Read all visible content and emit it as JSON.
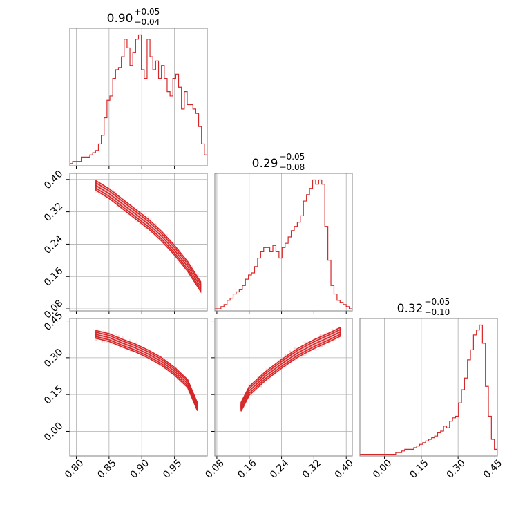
{
  "chart_data": {
    "type": "corner",
    "color": "#d62728",
    "titles": [
      {
        "main": "0.90",
        "plus": "+0.05",
        "minus": "−0.04"
      },
      {
        "main": "0.29",
        "plus": "+0.05",
        "minus": "−0.08"
      },
      {
        "main": "0.32",
        "plus": "+0.05",
        "minus": "−0.10"
      }
    ],
    "ranges": [
      [
        0.79,
        1.0
      ],
      [
        0.075,
        0.415
      ],
      [
        -0.1,
        0.46
      ]
    ],
    "ticks": [
      {
        "values": [
          0.8,
          0.85,
          0.9,
          0.95
        ],
        "labels": [
          "0.80",
          "0.85",
          "0.90",
          "0.95"
        ]
      },
      {
        "values": [
          0.08,
          0.16,
          0.24,
          0.32,
          0.4
        ],
        "labels": [
          "0.08",
          "0.16",
          "0.24",
          "0.32",
          "0.40"
        ]
      },
      {
        "values": [
          0.0,
          0.15,
          0.3,
          0.45
        ],
        "labels": [
          "0.00",
          "0.15",
          "0.30",
          "0.45"
        ]
      }
    ],
    "histograms": [
      {
        "param": 0,
        "edges_range": [
          0.79,
          1.0
        ],
        "counts": [
          1,
          2,
          2,
          2,
          4,
          4,
          4,
          5,
          6,
          7,
          10,
          14,
          22,
          30,
          32,
          40,
          44,
          45,
          50,
          58,
          54,
          46,
          52,
          58,
          60,
          44,
          40,
          58,
          50,
          44,
          48,
          40,
          46,
          40,
          34,
          32,
          40,
          42,
          36,
          26,
          34,
          28,
          28,
          26,
          24,
          18,
          10,
          5
        ]
      },
      {
        "param": 1,
        "edges_range": [
          0.075,
          0.415
        ],
        "counts": [
          1,
          1,
          2,
          3,
          5,
          6,
          8,
          9,
          10,
          12,
          15,
          17,
          18,
          21,
          25,
          28,
          30,
          30,
          28,
          31,
          28,
          25,
          30,
          32,
          35,
          38,
          40,
          42,
          45,
          52,
          55,
          58,
          62,
          60,
          62,
          60,
          40,
          24,
          12,
          8,
          5,
          4,
          3,
          2,
          1
        ]
      },
      {
        "param": 2,
        "edges_range": [
          -0.1,
          0.46
        ],
        "counts": [
          1,
          1,
          1,
          1,
          1,
          1,
          1,
          1,
          1,
          1,
          1,
          1,
          2,
          2,
          3,
          4,
          4,
          4,
          5,
          6,
          7,
          8,
          9,
          10,
          11,
          12,
          14,
          15,
          18,
          17,
          21,
          23,
          24,
          32,
          40,
          47,
          58,
          64,
          73,
          76,
          79,
          68,
          42,
          24,
          10,
          4
        ]
      }
    ],
    "pairs": [
      {
        "x_param": 0,
        "y_param": 1,
        "ridge": [
          [
            0.83,
            0.385
          ],
          [
            0.85,
            0.365
          ],
          [
            0.87,
            0.34
          ],
          [
            0.89,
            0.315
          ],
          [
            0.91,
            0.29
          ],
          [
            0.93,
            0.26
          ],
          [
            0.95,
            0.225
          ],
          [
            0.97,
            0.185
          ],
          [
            0.99,
            0.135
          ]
        ],
        "width": 0.012
      },
      {
        "x_param": 0,
        "y_param": 2,
        "ridge": [
          [
            0.83,
            0.395
          ],
          [
            0.85,
            0.382
          ],
          [
            0.87,
            0.36
          ],
          [
            0.89,
            0.34
          ],
          [
            0.91,
            0.315
          ],
          [
            0.93,
            0.285
          ],
          [
            0.95,
            0.245
          ],
          [
            0.97,
            0.195
          ],
          [
            0.985,
            0.1
          ]
        ],
        "width": 0.016
      },
      {
        "x_param": 1,
        "y_param": 2,
        "ridge": [
          [
            0.14,
            0.1
          ],
          [
            0.16,
            0.165
          ],
          [
            0.2,
            0.225
          ],
          [
            0.24,
            0.275
          ],
          [
            0.28,
            0.32
          ],
          [
            0.32,
            0.355
          ],
          [
            0.36,
            0.385
          ],
          [
            0.385,
            0.405
          ]
        ],
        "width": 0.018
      }
    ]
  }
}
